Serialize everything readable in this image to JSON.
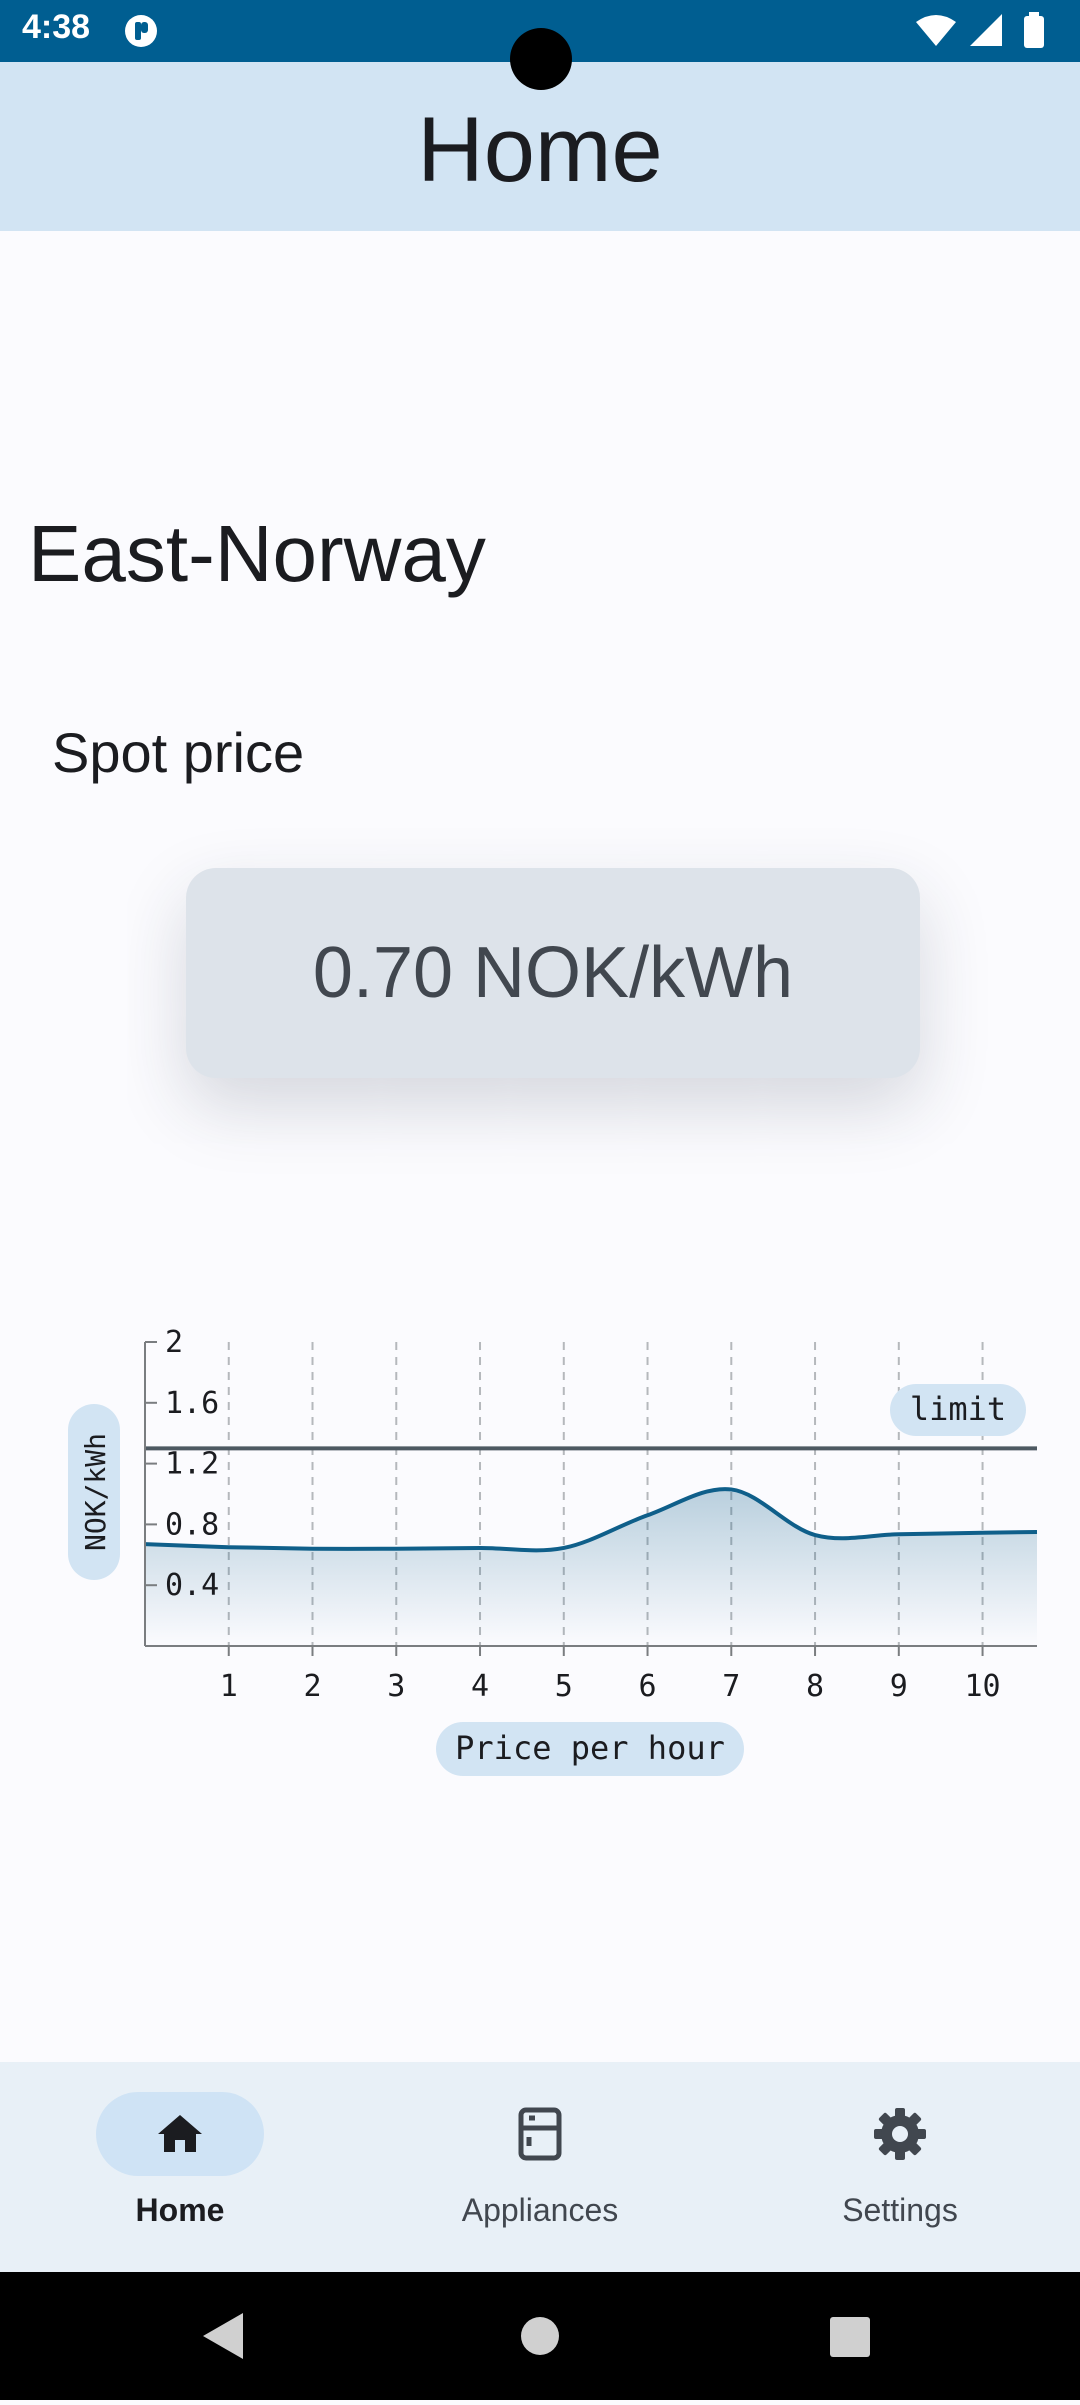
{
  "status_bar": {
    "time": "4:38"
  },
  "app_bar": {
    "title": "Home"
  },
  "region": "East-Norway",
  "spot": {
    "label": "Spot price",
    "value": "0.70 NOK/kWh"
  },
  "chart_data": {
    "type": "line",
    "ylabel": "NOK/kWh",
    "xlabel": "Price per hour",
    "x": [
      0,
      1,
      2,
      3,
      4,
      5,
      6,
      7,
      8,
      9,
      10,
      10.65
    ],
    "values": [
      0.67,
      0.65,
      0.64,
      0.64,
      0.645,
      0.645,
      0.86,
      1.03,
      0.73,
      0.735,
      0.745,
      0.75
    ],
    "xticks": [
      "1",
      "2",
      "3",
      "4",
      "5",
      "6",
      "7",
      "8",
      "9",
      "10"
    ],
    "yticks": [
      "0.4",
      "0.8",
      "1.2",
      "1.6",
      "2"
    ],
    "ylim": [
      0,
      2
    ],
    "xlim": [
      0,
      10.65
    ],
    "limit": {
      "label": "limit",
      "value": 1.3
    },
    "grid": "vertical dashed",
    "colors": {
      "line": "#0f5f8a",
      "limit": "#4d5962",
      "grid": "#b5b8bc",
      "axis": "#7a7d80",
      "label_bg": "#d2e4f3"
    }
  },
  "nav": {
    "items": [
      {
        "label": "Home",
        "icon": "home-icon",
        "active": true
      },
      {
        "label": "Appliances",
        "icon": "appliance-icon",
        "active": false
      },
      {
        "label": "Settings",
        "icon": "gear-icon",
        "active": false
      }
    ]
  },
  "system_nav": {
    "icons": [
      "back-icon",
      "home-circle-icon",
      "recents-icon"
    ]
  }
}
